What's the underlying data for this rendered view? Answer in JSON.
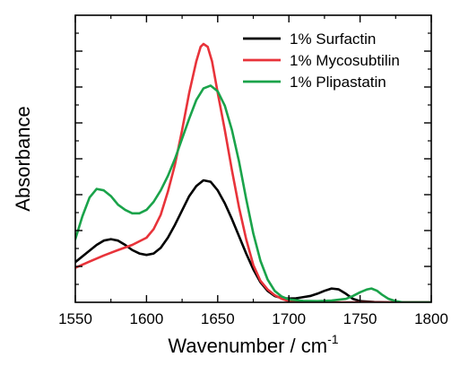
{
  "chart_data": {
    "type": "line",
    "xlabel_main": "Wavenumber / cm",
    "xlabel_sup": "-1",
    "ylabel": "Absorbance",
    "xlim": [
      1550,
      1800
    ],
    "ylim": [
      0,
      1.0
    ],
    "x_ticks": [
      1550,
      1600,
      1650,
      1700,
      1750,
      1800
    ],
    "y_ticks_shown": false,
    "grid": false,
    "legend_position": "top-right",
    "series": [
      {
        "name": "1% Surfactin",
        "color": "#000000",
        "points": [
          [
            1550,
            0.14
          ],
          [
            1560,
            0.18
          ],
          [
            1565,
            0.2
          ],
          [
            1570,
            0.215
          ],
          [
            1575,
            0.22
          ],
          [
            1580,
            0.215
          ],
          [
            1585,
            0.2
          ],
          [
            1590,
            0.182
          ],
          [
            1595,
            0.17
          ],
          [
            1600,
            0.165
          ],
          [
            1605,
            0.17
          ],
          [
            1610,
            0.19
          ],
          [
            1615,
            0.225
          ],
          [
            1620,
            0.27
          ],
          [
            1625,
            0.32
          ],
          [
            1630,
            0.37
          ],
          [
            1635,
            0.405
          ],
          [
            1640,
            0.425
          ],
          [
            1645,
            0.42
          ],
          [
            1650,
            0.39
          ],
          [
            1655,
            0.345
          ],
          [
            1660,
            0.29
          ],
          [
            1665,
            0.23
          ],
          [
            1670,
            0.17
          ],
          [
            1675,
            0.115
          ],
          [
            1680,
            0.07
          ],
          [
            1685,
            0.04
          ],
          [
            1690,
            0.022
          ],
          [
            1695,
            0.015
          ],
          [
            1700,
            0.013
          ],
          [
            1705,
            0.014
          ],
          [
            1710,
            0.018
          ],
          [
            1715,
            0.022
          ],
          [
            1720,
            0.03
          ],
          [
            1725,
            0.04
          ],
          [
            1730,
            0.048
          ],
          [
            1735,
            0.045
          ],
          [
            1740,
            0.03
          ],
          [
            1745,
            0.012
          ],
          [
            1750,
            0.004
          ],
          [
            1760,
            0.001
          ],
          [
            1770,
            0.0
          ],
          [
            1780,
            0.0
          ],
          [
            1790,
            0.0
          ],
          [
            1800,
            0.0
          ]
        ]
      },
      {
        "name": "1% Mycosubtilin",
        "color": "#e8333a",
        "points": [
          [
            1550,
            0.12
          ],
          [
            1560,
            0.142
          ],
          [
            1570,
            0.163
          ],
          [
            1580,
            0.182
          ],
          [
            1590,
            0.2
          ],
          [
            1600,
            0.225
          ],
          [
            1605,
            0.255
          ],
          [
            1610,
            0.305
          ],
          [
            1615,
            0.385
          ],
          [
            1620,
            0.48
          ],
          [
            1625,
            0.6
          ],
          [
            1630,
            0.73
          ],
          [
            1635,
            0.84
          ],
          [
            1638,
            0.89
          ],
          [
            1640,
            0.9
          ],
          [
            1643,
            0.89
          ],
          [
            1646,
            0.84
          ],
          [
            1650,
            0.73
          ],
          [
            1655,
            0.6
          ],
          [
            1660,
            0.46
          ],
          [
            1665,
            0.33
          ],
          [
            1670,
            0.22
          ],
          [
            1675,
            0.13
          ],
          [
            1680,
            0.075
          ],
          [
            1685,
            0.045
          ],
          [
            1690,
            0.025
          ],
          [
            1695,
            0.012
          ],
          [
            1700,
            0.004
          ],
          [
            1705,
            0.0
          ],
          [
            1710,
            0.0
          ],
          [
            1720,
            0.0
          ],
          [
            1740,
            0.0
          ],
          [
            1760,
            0.0
          ],
          [
            1780,
            0.0
          ],
          [
            1800,
            0.0
          ]
        ]
      },
      {
        "name": "1% Plipastatin",
        "color": "#1aa34a",
        "points": [
          [
            1550,
            0.22
          ],
          [
            1555,
            0.3
          ],
          [
            1560,
            0.365
          ],
          [
            1565,
            0.395
          ],
          [
            1570,
            0.39
          ],
          [
            1575,
            0.37
          ],
          [
            1580,
            0.34
          ],
          [
            1585,
            0.322
          ],
          [
            1590,
            0.31
          ],
          [
            1595,
            0.31
          ],
          [
            1600,
            0.322
          ],
          [
            1605,
            0.35
          ],
          [
            1610,
            0.39
          ],
          [
            1615,
            0.44
          ],
          [
            1620,
            0.5
          ],
          [
            1625,
            0.57
          ],
          [
            1630,
            0.64
          ],
          [
            1635,
            0.705
          ],
          [
            1640,
            0.745
          ],
          [
            1645,
            0.755
          ],
          [
            1650,
            0.735
          ],
          [
            1655,
            0.685
          ],
          [
            1660,
            0.6
          ],
          [
            1665,
            0.49
          ],
          [
            1670,
            0.36
          ],
          [
            1675,
            0.24
          ],
          [
            1680,
            0.145
          ],
          [
            1685,
            0.08
          ],
          [
            1690,
            0.04
          ],
          [
            1695,
            0.02
          ],
          [
            1700,
            0.01
          ],
          [
            1710,
            0.005
          ],
          [
            1720,
            0.004
          ],
          [
            1730,
            0.006
          ],
          [
            1740,
            0.012
          ],
          [
            1745,
            0.022
          ],
          [
            1750,
            0.035
          ],
          [
            1755,
            0.045
          ],
          [
            1758,
            0.048
          ],
          [
            1762,
            0.04
          ],
          [
            1765,
            0.028
          ],
          [
            1770,
            0.012
          ],
          [
            1775,
            0.004
          ],
          [
            1780,
            0.0
          ],
          [
            1790,
            0.0
          ],
          [
            1800,
            0.0
          ]
        ]
      }
    ]
  }
}
